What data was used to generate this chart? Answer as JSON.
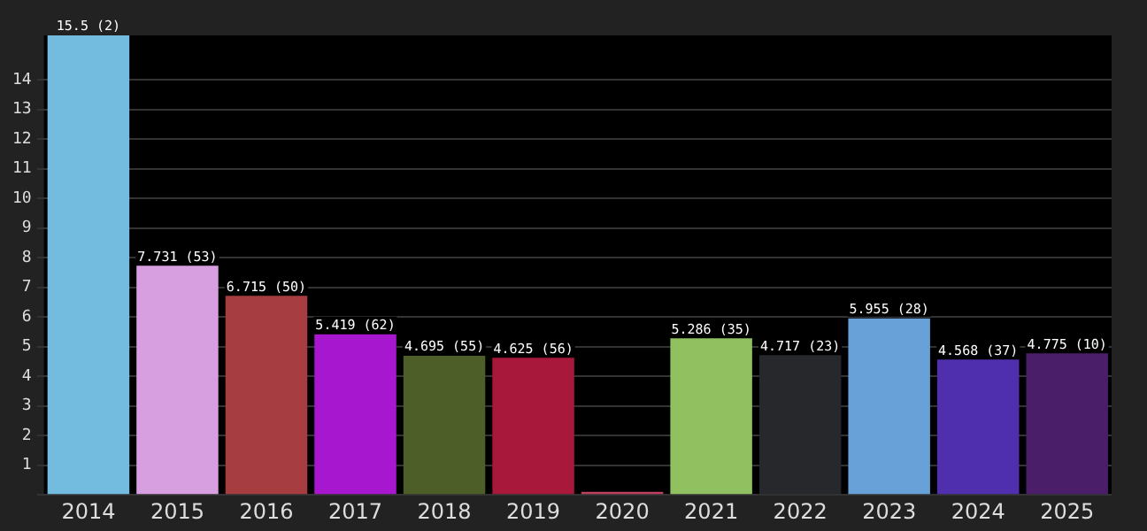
{
  "chart_data": {
    "type": "bar",
    "categories": [
      "2014",
      "2015",
      "2016",
      "2017",
      "2018",
      "2019",
      "2020",
      "2021",
      "2022",
      "2023",
      "2024",
      "2025"
    ],
    "values": [
      15.5,
      7.731,
      6.715,
      5.419,
      4.695,
      4.625,
      0.1,
      5.286,
      4.717,
      5.955,
      4.568,
      4.775
    ],
    "colors": [
      "#74bbe0",
      "#d89fe0",
      "#a63d40",
      "#a817d0",
      "#4d5e28",
      "#a8183a",
      "#c04060",
      "#90c060",
      "#26282b",
      "#68a0d8",
      "#4f2fae",
      "#4a1e68"
    ],
    "value_labels": [
      "15.5 (2)",
      "7.731 (53)",
      "6.715 (50)",
      "5.419 (62)",
      "4.695 (55)",
      "4.625 (56)",
      null,
      "5.286 (35)",
      "4.717 (23)",
      "5.955 (28)",
      "4.568 (37)",
      "4.775 (10)"
    ],
    "ylim": [
      0,
      15.5
    ],
    "yticks": [
      {
        "value": 0,
        "label": null
      },
      1,
      2,
      3,
      4,
      5,
      6,
      7,
      8,
      9,
      10,
      11,
      12,
      13,
      14
    ],
    "grid": "y",
    "legend": false
  }
}
